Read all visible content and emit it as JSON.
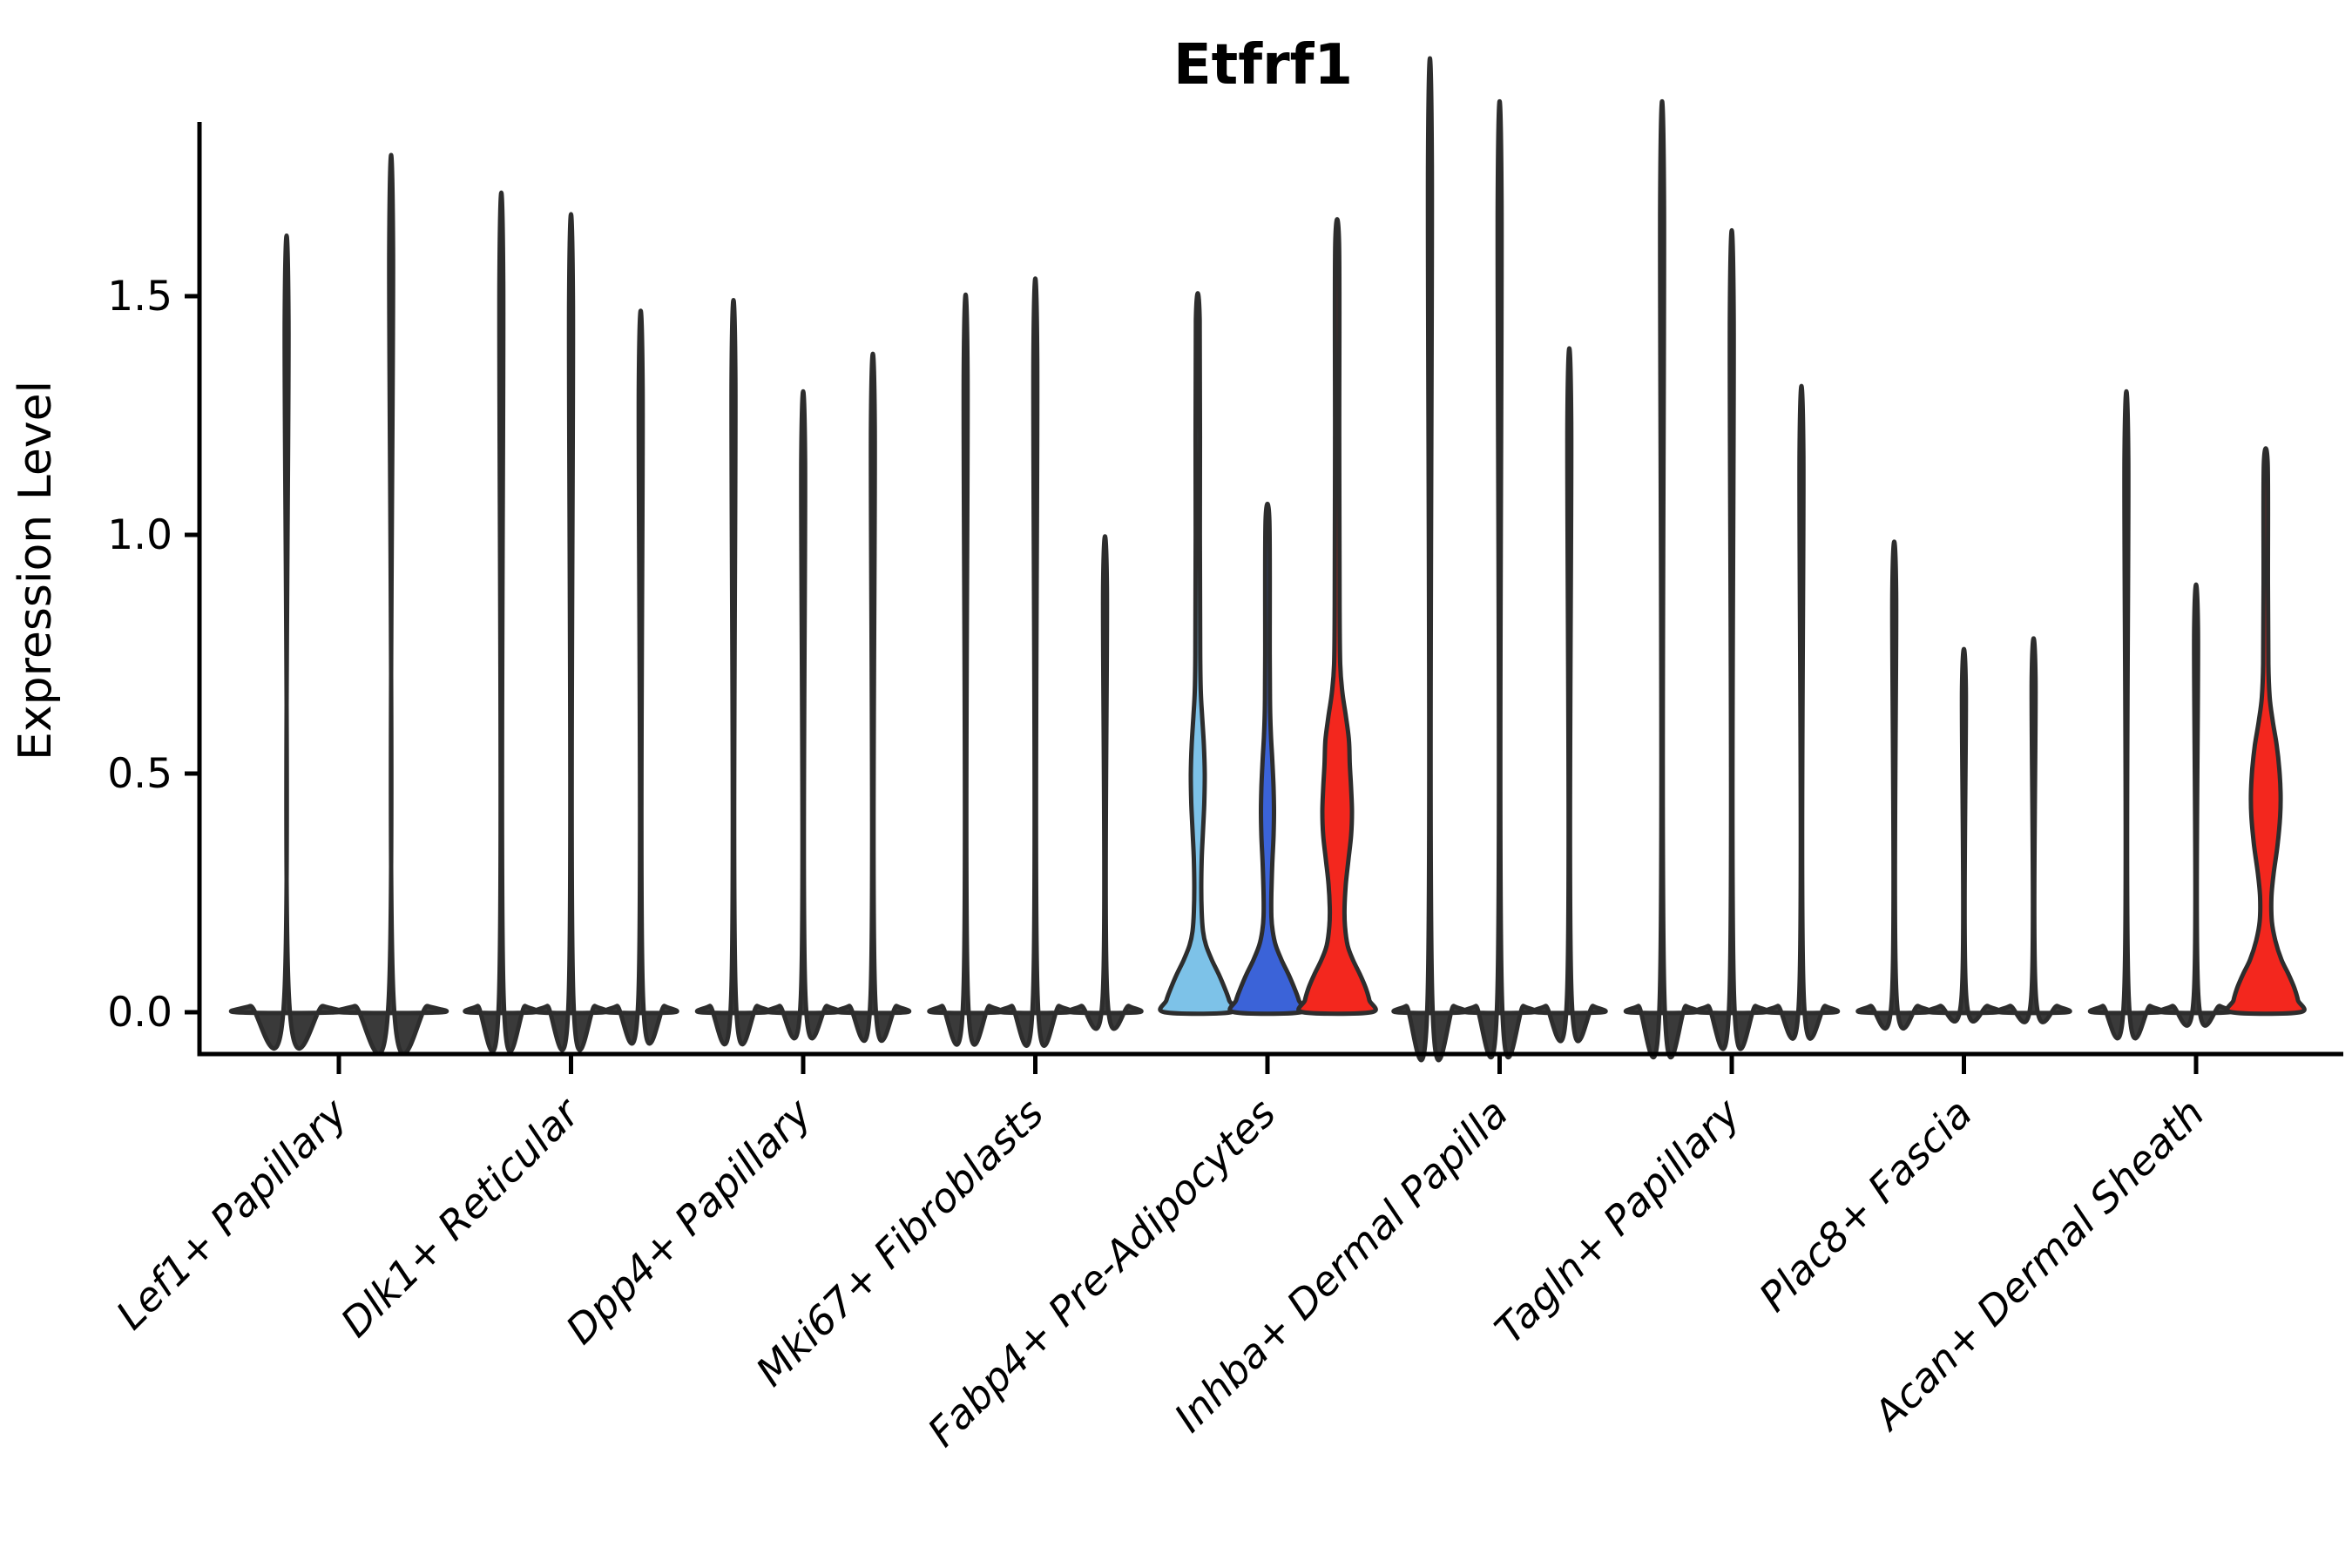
{
  "page": {
    "background": "#ffffff"
  },
  "chart_data": {
    "type": "violin",
    "title": "Etfrf1",
    "ylabel": "Expression Level",
    "xlabel": "",
    "grid": false,
    "legend": "none",
    "ylim": [
      -0.09,
      1.865
    ],
    "ytick_values": [
      0.0,
      0.5,
      1.0,
      1.5
    ],
    "ytick_labels": [
      "0.0",
      "0.5",
      "1.0",
      "1.5"
    ],
    "categories": [
      "Lef1+ Papillary",
      "Dlk1+ Reticular",
      "Dpp4+ Papillary",
      "Mki67+ Fibroblasts",
      "Fabp4+ Pre-Adipocytes",
      "Inhba+ Dermal Papilla",
      "Tagln+ Papillary",
      "Plac8+ Fascia",
      "Acan+ Dermal Sheath"
    ],
    "palette": {
      "black_fill": "#3a3a3a",
      "outline": "#2d2d2d",
      "axis": "#000000",
      "lightblue": "#7dc2e8",
      "darkblue": "#3b63d8",
      "red": "#f3271e"
    },
    "groups": [
      {
        "category": "Lef1+ Papillary",
        "violins": [
          {
            "max": 1.45,
            "color": "black_fill"
          },
          {
            "max": 1.6,
            "color": "black_fill"
          }
        ]
      },
      {
        "category": "Dlk1+ Reticular",
        "violins": [
          {
            "max": 1.53,
            "color": "black_fill"
          },
          {
            "max": 1.49,
            "color": "black_fill"
          },
          {
            "max": 1.31,
            "color": "black_fill"
          }
        ]
      },
      {
        "category": "Dpp4+ Papillary",
        "violins": [
          {
            "max": 1.33,
            "color": "black_fill"
          },
          {
            "max": 1.16,
            "color": "black_fill"
          },
          {
            "max": 1.23,
            "color": "black_fill"
          }
        ]
      },
      {
        "category": "Mki67+ Fibroblasts",
        "violins": [
          {
            "max": 1.34,
            "color": "black_fill"
          },
          {
            "max": 1.37,
            "color": "black_fill"
          },
          {
            "max": 0.89,
            "color": "black_fill"
          }
        ]
      },
      {
        "category": "Fabp4+ Pre-Adipocytes",
        "violins": [
          {
            "max": 1.45,
            "color": "lightblue",
            "profile": [
              [
                0,
                38
              ],
              [
                0.025,
                36
              ],
              [
                0.05,
                31
              ],
              [
                0.08,
                24
              ],
              [
                0.11,
                16
              ],
              [
                0.14,
                9.5
              ],
              [
                0.17,
                6
              ],
              [
                0.21,
                4.5
              ],
              [
                0.26,
                4
              ],
              [
                0.32,
                4.5
              ],
              [
                0.38,
                6
              ],
              [
                0.44,
                7.5
              ],
              [
                0.5,
                8
              ],
              [
                0.56,
                7
              ],
              [
                0.62,
                5
              ],
              [
                0.67,
                3.5
              ],
              [
                0.75,
                2.8
              ],
              [
                1.0,
                2.4
              ],
              [
                1.45,
                2.2
              ]
            ]
          },
          {
            "max": 1.03,
            "color": "darkblue",
            "profile": [
              [
                0,
                38
              ],
              [
                0.025,
                36
              ],
              [
                0.05,
                31
              ],
              [
                0.08,
                24
              ],
              [
                0.11,
                16
              ],
              [
                0.14,
                9.5
              ],
              [
                0.17,
                6
              ],
              [
                0.2,
                4.5
              ],
              [
                0.25,
                4.5
              ],
              [
                0.31,
                5.5
              ],
              [
                0.37,
                7
              ],
              [
                0.42,
                7.5
              ],
              [
                0.47,
                7
              ],
              [
                0.53,
                5.5
              ],
              [
                0.58,
                4
              ],
              [
                0.64,
                3
              ],
              [
                0.75,
                2.6
              ],
              [
                1.03,
                2.2
              ]
            ]
          },
          {
            "max": 1.61,
            "color": "red",
            "profile": [
              [
                0,
                39
              ],
              [
                0.025,
                37
              ],
              [
                0.05,
                33
              ],
              [
                0.08,
                26
              ],
              [
                0.11,
                18
              ],
              [
                0.14,
                12
              ],
              [
                0.18,
                9
              ],
              [
                0.22,
                8.5
              ],
              [
                0.27,
                10
              ],
              [
                0.32,
                13
              ],
              [
                0.37,
                16
              ],
              [
                0.42,
                17
              ],
              [
                0.47,
                16
              ],
              [
                0.52,
                14.5
              ],
              [
                0.57,
                13.5
              ],
              [
                0.62,
                10
              ],
              [
                0.67,
                6
              ],
              [
                0.73,
                3.5
              ],
              [
                0.85,
                2.8
              ],
              [
                1.2,
                2.4
              ],
              [
                1.61,
                2.2
              ]
            ]
          }
        ]
      },
      {
        "category": "Inhba+ Dermal Papilla",
        "violins": [
          {
            "max": 1.78,
            "color": "black_fill"
          },
          {
            "max": 1.7,
            "color": "black_fill"
          },
          {
            "max": 1.24,
            "color": "black_fill"
          }
        ]
      },
      {
        "category": "Tagln+ Papillary",
        "violins": [
          {
            "max": 1.7,
            "color": "black_fill"
          },
          {
            "max": 1.46,
            "color": "black_fill"
          },
          {
            "max": 1.17,
            "color": "black_fill"
          }
        ]
      },
      {
        "category": "Plac8+ Fascia",
        "violins": [
          {
            "max": 0.88,
            "color": "black_fill"
          },
          {
            "max": 0.68,
            "color": "black_fill"
          },
          {
            "max": 0.7,
            "color": "black_fill"
          }
        ]
      },
      {
        "category": "Acan+ Dermal Sheath",
        "violins": [
          {
            "max": 1.16,
            "color": "black_fill"
          },
          {
            "max": 0.8,
            "color": "black_fill"
          },
          {
            "max": 1.15,
            "color": "red",
            "profile": [
              [
                0,
                39
              ],
              [
                0.025,
                37
              ],
              [
                0.05,
                33
              ],
              [
                0.08,
                26
              ],
              [
                0.11,
                18
              ],
              [
                0.15,
                11
              ],
              [
                0.19,
                7
              ],
              [
                0.24,
                6.5
              ],
              [
                0.29,
                9
              ],
              [
                0.35,
                13.5
              ],
              [
                0.41,
                16.5
              ],
              [
                0.46,
                17
              ],
              [
                0.51,
                15.5
              ],
              [
                0.56,
                12.5
              ],
              [
                0.61,
                8
              ],
              [
                0.66,
                4.5
              ],
              [
                0.73,
                3
              ],
              [
                0.9,
                2.5
              ],
              [
                1.15,
                2.2
              ]
            ]
          }
        ]
      }
    ]
  }
}
